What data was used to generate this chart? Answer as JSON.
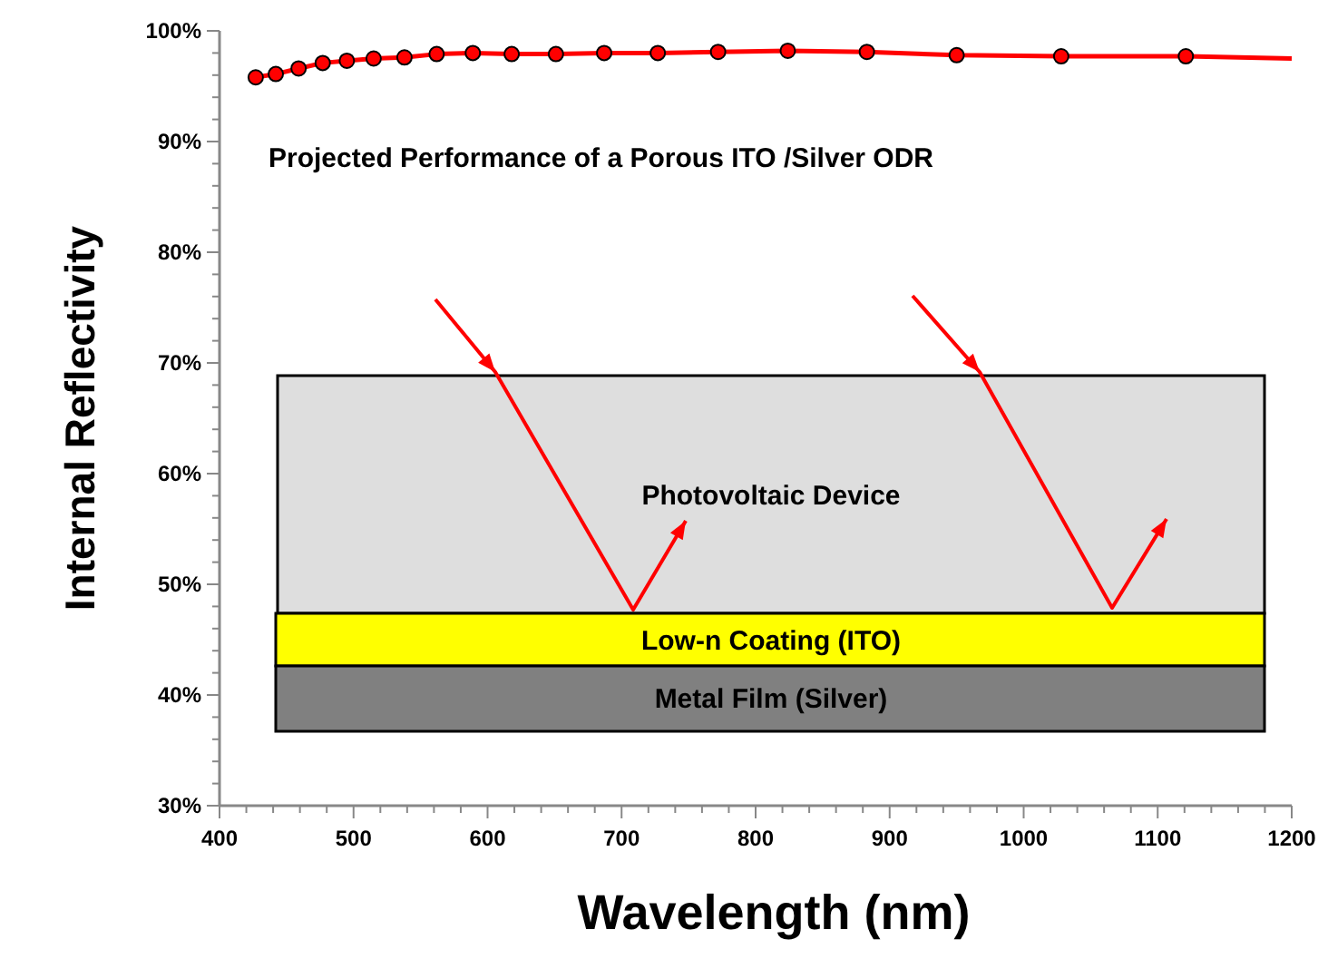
{
  "chart_data": {
    "type": "line",
    "title": "Projected Performance of a Porous ITO /Silver ODR",
    "xlabel": "Wavelength (nm)",
    "ylabel": "Internal Reflectivity",
    "annotations": [
      "Photovoltaic Device",
      "Low-n Coating (ITO)",
      "Metal Film (Silver)"
    ],
    "xlim": [
      400,
      1200
    ],
    "xticks": [
      400,
      500,
      600,
      700,
      800,
      900,
      1000,
      1100,
      1200
    ],
    "ylim": [
      30,
      100
    ],
    "yticks": [
      {
        "value": 30,
        "label": "30%"
      },
      {
        "value": 40,
        "label": "40%"
      },
      {
        "value": 50,
        "label": "50%"
      },
      {
        "value": 60,
        "label": "60%"
      },
      {
        "value": 70,
        "label": "70%"
      },
      {
        "value": 80,
        "label": "80%"
      },
      {
        "value": 90,
        "label": "90%"
      },
      {
        "value": 100,
        "label": "100%"
      }
    ],
    "grid": false,
    "series": [
      {
        "marker": "none",
        "color": "#ff0000",
        "x": [
          427,
          442,
          459,
          477,
          495,
          515,
          538,
          562,
          589,
          618,
          651,
          687,
          727,
          772,
          824,
          883,
          950,
          1028,
          1121,
          1200
        ],
        "values": [
          95.8,
          96.1,
          96.6,
          97.1,
          97.3,
          97.5,
          97.6,
          97.9,
          98.0,
          97.9,
          97.9,
          98.0,
          98.0,
          98.1,
          98.2,
          98.1,
          97.8,
          97.7,
          97.7,
          97.5
        ]
      },
      {
        "type": "scatter",
        "marker": "circle",
        "color": "#ff0000",
        "x": [
          427,
          442,
          459,
          477,
          495,
          515,
          538,
          562,
          589,
          618,
          651,
          687,
          727,
          772,
          824,
          883,
          950,
          1028,
          1121
        ],
        "values": [
          95.8,
          96.1,
          96.6,
          97.1,
          97.3,
          97.5,
          97.6,
          97.9,
          98.0,
          97.9,
          97.9,
          98.0,
          98.0,
          98.1,
          98.2,
          98.1,
          97.8,
          97.7,
          97.7
        ]
      }
    ]
  }
}
